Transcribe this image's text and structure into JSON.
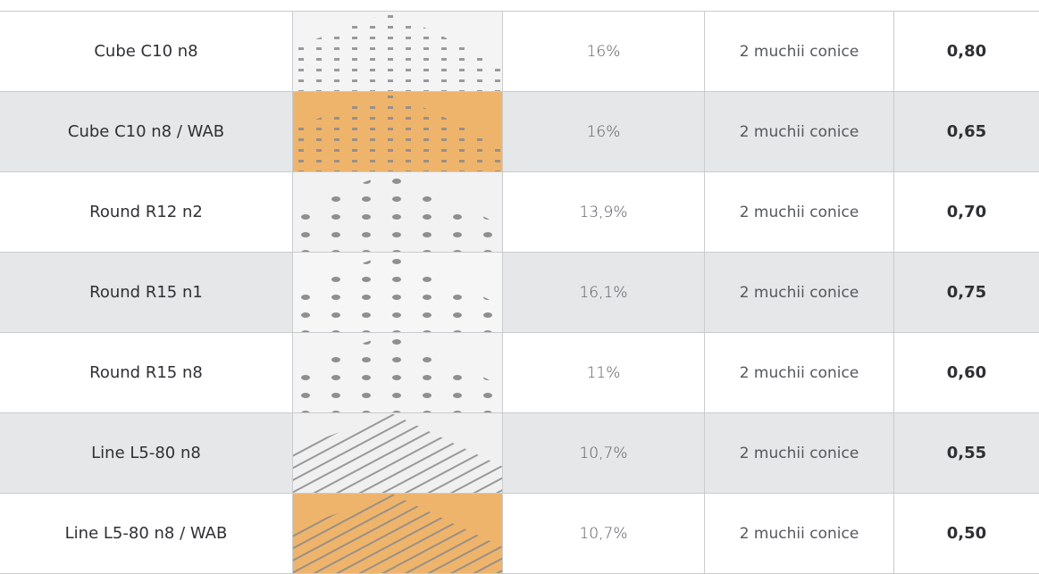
{
  "table": {
    "rows": [
      [
        "Cube C10 n8",
        "16%",
        "2 muchii conice",
        "0,80"
      ],
      [
        "Cube C10 n8 / WAB",
        "16%",
        "2 muchii conice",
        "0,65"
      ],
      [
        "Round R12 n2",
        "13,9%",
        "2 muchii conice",
        "0,70"
      ],
      [
        "Round R15 n1",
        "16,1%",
        "2 muchii conice",
        "0,75"
      ],
      [
        "Round R15 n8",
        "11%",
        "2 muchii conice",
        "0,60"
      ],
      [
        "Line L5-80 n8",
        "10,7%",
        "2 muchii conice",
        "0,55"
      ],
      [
        "Line L5-80 n8 / WAB",
        "10,7%",
        "2 muchii conice",
        "0,50"
      ]
    ]
  }
}
